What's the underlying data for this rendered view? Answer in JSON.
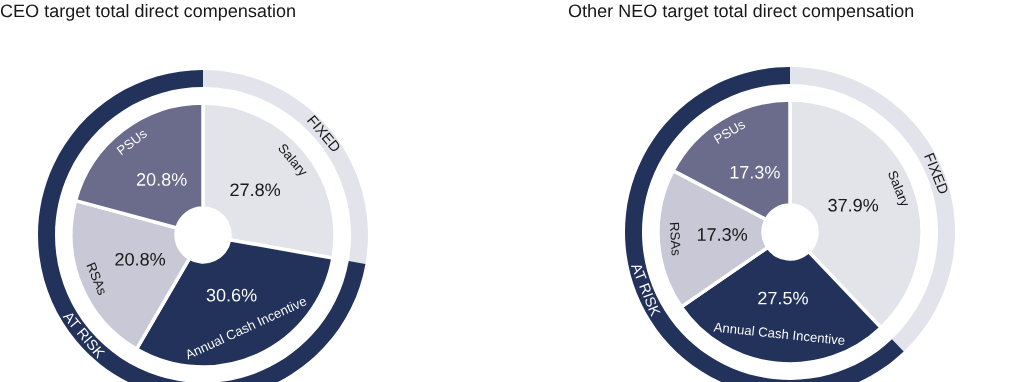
{
  "chart_data": [
    {
      "type": "donut",
      "title": "CEO target total direct compensation",
      "categories": [
        "Salary",
        "Annual Cash Incentive",
        "RSAs",
        "PSUs"
      ],
      "annotations": [
        "FIXED",
        "AT RISK"
      ],
      "series": [
        {
          "values": [
            27.8,
            30.6,
            20.8,
            20.8
          ],
          "value_labels": [
            "27.8%",
            "30.6%",
            "20.8%",
            "20.8%"
          ],
          "colors": [
            "#e3e3ea",
            "#22325a",
            "#c8c8d6",
            "#6b6b8c"
          ]
        },
        {
          "values": [
            27.8,
            72.2,
            null,
            null
          ],
          "colors": [
            "#e3e3ec",
            "#22325a",
            null,
            null
          ]
        }
      ]
    },
    {
      "type": "donut",
      "title": "Other NEO target total direct compensation",
      "categories": [
        "Salary",
        "Annual Cash Incentive",
        "RSAs",
        "PSUs"
      ],
      "annotations": [
        "FIXED",
        "AT RISK"
      ],
      "series": [
        {
          "values": [
            37.9,
            27.5,
            17.3,
            17.3
          ],
          "value_labels": [
            "37.9%",
            "27.5%",
            "17.3%",
            "17.3%"
          ],
          "colors": [
            "#e3e3ea",
            "#22325a",
            "#c8c8d6",
            "#6b6b8c"
          ]
        },
        {
          "values": [
            37.9,
            62.1,
            null,
            null
          ],
          "colors": [
            "#e3e3ec",
            "#22325a",
            null,
            null
          ]
        }
      ]
    }
  ]
}
